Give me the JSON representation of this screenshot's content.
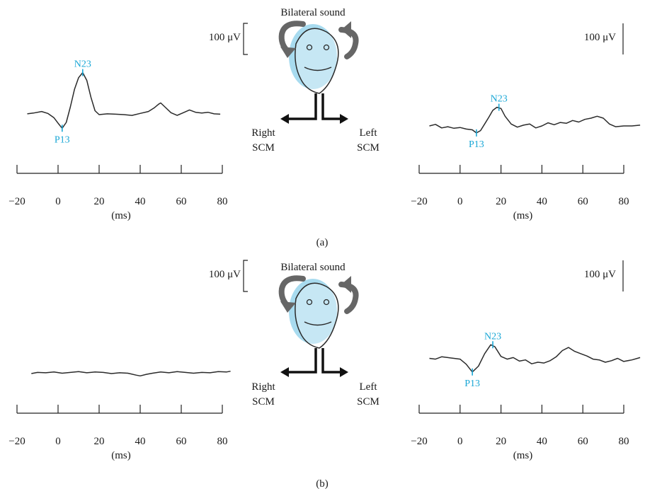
{
  "chart_data": [
    {
      "panel": "(a)",
      "type": "line",
      "stimulus_label": "Bilateral sound",
      "scale_label": "100 μV",
      "left_muscle": [
        "Right",
        "SCM"
      ],
      "right_muscle": [
        "Left",
        "SCM"
      ],
      "xlabel": "(ms)",
      "xticks": [
        -20,
        0,
        20,
        40,
        60,
        80
      ],
      "xlim": [
        -20,
        80
      ],
      "traces": [
        {
          "side": "right-SCM",
          "x": [
            -15,
            -12,
            -8,
            -5,
            -2,
            0,
            2,
            4,
            6,
            8,
            10,
            12,
            14,
            16,
            18,
            20,
            24,
            28,
            32,
            36,
            40,
            44,
            47,
            49,
            50,
            52,
            55,
            58,
            61,
            64,
            67,
            70,
            73,
            76,
            79
          ],
          "y": [
            2,
            4,
            8,
            3,
            -8,
            -22,
            -35,
            -20,
            20,
            65,
            95,
            108,
            88,
            45,
            10,
            0,
            2,
            1,
            0,
            -2,
            3,
            8,
            18,
            27,
            30,
            20,
            5,
            -2,
            5,
            12,
            6,
            4,
            6,
            2,
            1
          ],
          "peaks": [
            {
              "label": "P13",
              "x": 2,
              "y": -35
            },
            {
              "label": "N23",
              "x": 12,
              "y": 108
            }
          ]
        },
        {
          "side": "left-SCM",
          "x": [
            -15,
            -12,
            -9,
            -6,
            -3,
            0,
            3,
            6,
            8,
            10,
            12,
            14,
            16,
            18,
            20,
            22,
            25,
            28,
            31,
            34,
            37,
            40,
            43,
            46,
            49,
            52,
            55,
            58,
            61,
            64,
            67,
            70,
            73,
            76,
            80,
            84,
            88
          ],
          "y": [
            0,
            4,
            -5,
            -2,
            -6,
            -4,
            -8,
            -10,
            -18,
            -12,
            5,
            22,
            40,
            48,
            45,
            25,
            5,
            -3,
            2,
            5,
            -5,
            0,
            8,
            3,
            9,
            7,
            14,
            10,
            17,
            20,
            25,
            20,
            5,
            -2,
            0,
            0,
            2
          ],
          "peaks": [
            {
              "label": "P13",
              "x": 8,
              "y": -18
            },
            {
              "label": "N23",
              "x": 19,
              "y": 48
            }
          ]
        }
      ]
    },
    {
      "panel": "(b)",
      "type": "line",
      "stimulus_label": "Bilateral sound",
      "scale_label": "100 μV",
      "left_muscle": [
        "Right",
        "SCM"
      ],
      "right_muscle": [
        "Left",
        "SCM"
      ],
      "xlabel": "(ms)",
      "xticks": [
        -20,
        0,
        20,
        40,
        60,
        80
      ],
      "xlim": [
        -20,
        80
      ],
      "traces": [
        {
          "side": "right-SCM",
          "x": [
            -13,
            -10,
            -6,
            -2,
            2,
            6,
            10,
            14,
            18,
            22,
            26,
            30,
            34,
            38,
            40,
            43,
            46,
            50,
            54,
            58,
            62,
            66,
            70,
            74,
            78,
            82,
            84
          ],
          "y": [
            0,
            3,
            2,
            4,
            1,
            3,
            5,
            2,
            4,
            3,
            0,
            2,
            1,
            -4,
            -6,
            -2,
            1,
            4,
            2,
            5,
            3,
            1,
            3,
            2,
            5,
            4,
            6
          ],
          "peaks": []
        },
        {
          "side": "left-SCM",
          "x": [
            -15,
            -12,
            -9,
            -6,
            -3,
            0,
            3,
            6,
            9,
            12,
            15,
            17,
            20,
            23,
            26,
            29,
            32,
            35,
            38,
            41,
            44,
            47,
            50,
            53,
            56,
            59,
            62,
            65,
            68,
            71,
            74,
            77,
            80,
            84,
            88
          ],
          "y": [
            10,
            8,
            14,
            12,
            10,
            8,
            -5,
            -25,
            -10,
            22,
            45,
            40,
            15,
            8,
            12,
            3,
            6,
            -4,
            0,
            -2,
            4,
            14,
            30,
            38,
            28,
            22,
            16,
            8,
            6,
            0,
            4,
            10,
            2,
            6,
            12
          ],
          "peaks": [
            {
              "label": "P13",
              "x": 6,
              "y": -25
            },
            {
              "label": "N23",
              "x": 16,
              "y": 45
            }
          ]
        }
      ]
    }
  ],
  "panel_labels": [
    "(a)",
    "(b)"
  ]
}
